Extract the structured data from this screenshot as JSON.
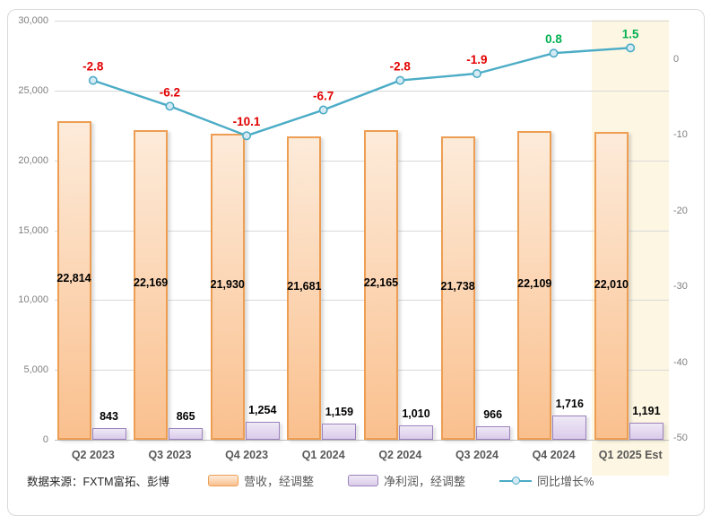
{
  "source_note": "数据来源：FXTM富拓、彭博",
  "legend": [
    {
      "label": "营收，经调整",
      "swatch": "bar",
      "fill_top": "#FDEBDA",
      "fill_bottom": "#FAC08E",
      "border": "#ED9E53"
    },
    {
      "label": "净利润，经调整",
      "swatch": "bar",
      "fill_top": "#EFE9F6",
      "fill_bottom": "#DACBEA",
      "border": "#9C82BC"
    },
    {
      "label": "同比增长%",
      "swatch": "line",
      "color": "#4BACC6",
      "marker_fill": "#D6EAF3"
    }
  ],
  "chart_data": {
    "type": "bar+line",
    "categories": [
      "Q2 2023",
      "Q3 2023",
      "Q4 2023",
      "Q1 2024",
      "Q2 2024",
      "Q3 2024",
      "Q4 2024",
      "Q1 2025 Est"
    ],
    "series": [
      {
        "name": "营收，经调整",
        "type": "bar",
        "axis": "left",
        "values": [
          22814,
          22169,
          21930,
          21681,
          22165,
          21738,
          22109,
          22010
        ],
        "labels": [
          "22,814",
          "22,169",
          "21,930",
          "21,681",
          "22,165",
          "21,738",
          "22,109",
          "22,010"
        ]
      },
      {
        "name": "净利润，经调整",
        "type": "bar",
        "axis": "left",
        "values": [
          843,
          865,
          1254,
          1159,
          1010,
          966,
          1716,
          1191
        ],
        "labels": [
          "843",
          "865",
          "1,254",
          "1,159",
          "1,010",
          "966",
          "1,716",
          "1,191"
        ]
      },
      {
        "name": "同比增长%",
        "type": "line",
        "axis": "right",
        "values": [
          -2.8,
          -6.2,
          -10.1,
          -6.7,
          -2.8,
          -1.9,
          0.8,
          1.5
        ],
        "labels": [
          "-2.8",
          "-6.2",
          "-10.1",
          "-6.7",
          "-2.8",
          "-1.9",
          "0.8",
          "1.5"
        ]
      }
    ],
    "left_axis": {
      "min": 0,
      "max": 30000,
      "step": 5000,
      "ticks": [
        {
          "value": 30000,
          "label": "30,000"
        },
        {
          "value": 25000,
          "label": "25,000"
        },
        {
          "value": 20000,
          "label": "20,000"
        },
        {
          "value": 15000,
          "label": "15,000"
        },
        {
          "value": 10000,
          "label": "10,000"
        },
        {
          "value": 5000,
          "label": "5,000"
        },
        {
          "value": 0,
          "label": "0"
        }
      ]
    },
    "right_axis": {
      "unit": "%",
      "ticks": [
        {
          "value": 0,
          "label": "0"
        },
        {
          "value": -10,
          "label": "-10"
        },
        {
          "value": -20,
          "label": "-20"
        },
        {
          "value": -30,
          "label": "-30"
        },
        {
          "value": -40,
          "label": "-40"
        },
        {
          "value": -50,
          "label": "-50"
        }
      ]
    },
    "highlight": {
      "category_index": 7,
      "category": "Q1 2025 Est",
      "color": "#FDF6E2"
    },
    "grid": true,
    "legend_position": "bottom",
    "colors": {
      "background": "#FFFFFF",
      "frame_border": "#D9D9D9",
      "grid": "#D9D9D9",
      "axis_zero_line": "#BFBFBF",
      "axis_text": "#808080",
      "category_text": "#595959",
      "bar_label_text": "#000000",
      "line": "#4BACC6",
      "marker_fill": "#D6EAF3",
      "positive_label": "#00B050",
      "negative_label": "#E30000",
      "revenue_fill_top": "#FDEBDA",
      "revenue_fill_bottom": "#FAC08E",
      "revenue_border": "#ED9E53",
      "profit_fill_top": "#EFE9F6",
      "profit_fill_bottom": "#DACBEA",
      "profit_border": "#9C82BC"
    }
  }
}
